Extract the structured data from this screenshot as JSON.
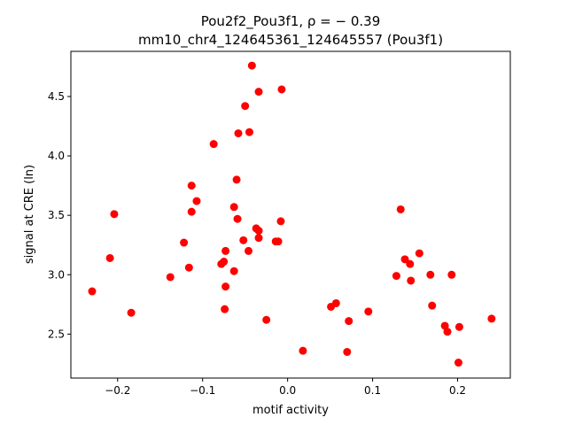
{
  "chart_data": {
    "type": "scatter",
    "title_line1": "Pou2f2_Pou3f1, ρ = − 0.39",
    "title_line2": "mm10_chr4_124645361_124645557 (Pou3f1)",
    "xlabel": "motif activity",
    "ylabel": "signal at CRE (ln)",
    "xlim": [
      -0.255,
      0.262
    ],
    "ylim": [
      2.13,
      4.88
    ],
    "xticks": [
      -0.2,
      -0.1,
      0.0,
      0.1,
      0.2
    ],
    "xtick_labels": [
      "−0.2",
      "−0.1",
      "0.0",
      "0.1",
      "0.2"
    ],
    "yticks": [
      2.5,
      3.0,
      3.5,
      4.0,
      4.5
    ],
    "ytick_labels": [
      "2.5",
      "3.0",
      "3.5",
      "4.0",
      "4.5"
    ],
    "grid": false,
    "marker_color": "#ff0000",
    "points": [
      {
        "x": -0.23,
        "y": 2.86
      },
      {
        "x": -0.209,
        "y": 3.14
      },
      {
        "x": -0.204,
        "y": 3.51
      },
      {
        "x": -0.184,
        "y": 2.68
      },
      {
        "x": -0.138,
        "y": 2.98
      },
      {
        "x": -0.122,
        "y": 3.27
      },
      {
        "x": -0.116,
        "y": 3.06
      },
      {
        "x": -0.113,
        "y": 3.75
      },
      {
        "x": -0.113,
        "y": 3.53
      },
      {
        "x": -0.107,
        "y": 3.62
      },
      {
        "x": -0.087,
        "y": 4.1
      },
      {
        "x": -0.078,
        "y": 3.09
      },
      {
        "x": -0.075,
        "y": 3.11
      },
      {
        "x": -0.073,
        "y": 3.2
      },
      {
        "x": -0.073,
        "y": 2.9
      },
      {
        "x": -0.074,
        "y": 2.71
      },
      {
        "x": -0.063,
        "y": 3.57
      },
      {
        "x": -0.063,
        "y": 3.03
      },
      {
        "x": -0.06,
        "y": 3.8
      },
      {
        "x": -0.059,
        "y": 3.47
      },
      {
        "x": -0.058,
        "y": 4.19
      },
      {
        "x": -0.052,
        "y": 3.29
      },
      {
        "x": -0.05,
        "y": 4.42
      },
      {
        "x": -0.046,
        "y": 3.2
      },
      {
        "x": -0.045,
        "y": 4.2
      },
      {
        "x": -0.042,
        "y": 4.76
      },
      {
        "x": -0.037,
        "y": 3.39
      },
      {
        "x": -0.034,
        "y": 3.37
      },
      {
        "x": -0.034,
        "y": 3.31
      },
      {
        "x": -0.034,
        "y": 4.54
      },
      {
        "x": -0.025,
        "y": 2.62
      },
      {
        "x": -0.014,
        "y": 3.28
      },
      {
        "x": -0.011,
        "y": 3.28
      },
      {
        "x": -0.008,
        "y": 3.45
      },
      {
        "x": -0.007,
        "y": 4.56
      },
      {
        "x": 0.018,
        "y": 2.36
      },
      {
        "x": 0.051,
        "y": 2.73
      },
      {
        "x": 0.057,
        "y": 2.76
      },
      {
        "x": 0.07,
        "y": 2.35
      },
      {
        "x": 0.072,
        "y": 2.61
      },
      {
        "x": 0.095,
        "y": 2.69
      },
      {
        "x": 0.128,
        "y": 2.99
      },
      {
        "x": 0.133,
        "y": 3.55
      },
      {
        "x": 0.138,
        "y": 3.13
      },
      {
        "x": 0.144,
        "y": 3.09
      },
      {
        "x": 0.145,
        "y": 2.95
      },
      {
        "x": 0.155,
        "y": 3.18
      },
      {
        "x": 0.168,
        "y": 3.0
      },
      {
        "x": 0.17,
        "y": 2.74
      },
      {
        "x": 0.185,
        "y": 2.57
      },
      {
        "x": 0.188,
        "y": 2.52
      },
      {
        "x": 0.193,
        "y": 3.0
      },
      {
        "x": 0.201,
        "y": 2.26
      },
      {
        "x": 0.202,
        "y": 2.56
      },
      {
        "x": 0.24,
        "y": 2.63
      }
    ]
  }
}
